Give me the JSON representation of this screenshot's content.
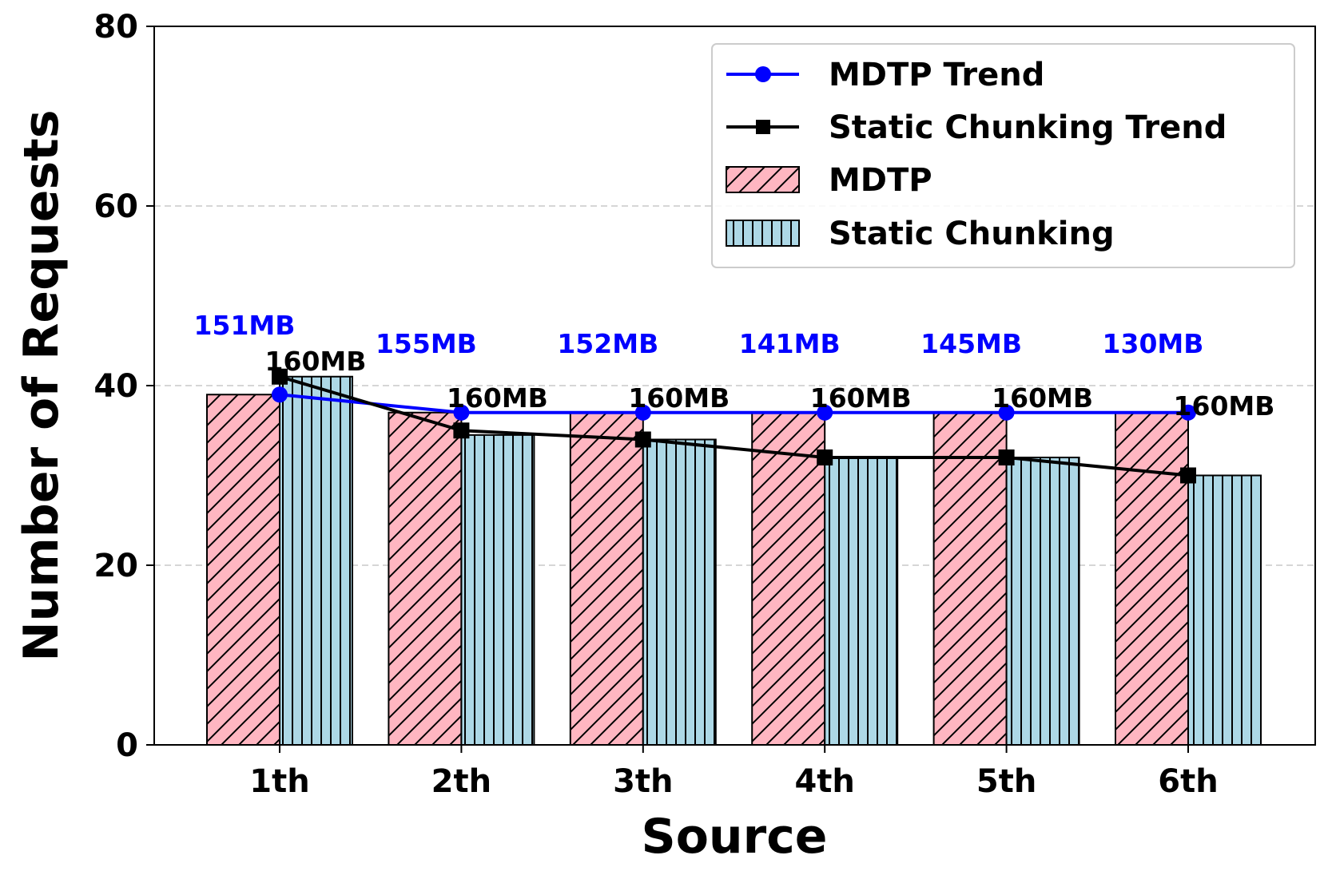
{
  "chart_data": {
    "type": "bar",
    "title": "",
    "xlabel": "Source",
    "ylabel": "Number of Requests",
    "ylim": [
      0,
      80
    ],
    "yticks": [
      0,
      20,
      40,
      60,
      80
    ],
    "grid": "y-dashed",
    "legend_position": "top-right",
    "categories": [
      "1th",
      "2th",
      "3th",
      "4th",
      "5th",
      "6th"
    ],
    "series": [
      {
        "name": "MDTP",
        "kind": "bar",
        "color": "#ffb6c1",
        "hatch": "diagonal",
        "values": [
          39,
          37,
          37,
          37,
          37,
          37
        ],
        "labels": [
          "151MB",
          "155MB",
          "152MB",
          "141MB",
          "145MB",
          "130MB"
        ],
        "label_color": "#0000ff"
      },
      {
        "name": "Static Chunking",
        "kind": "bar",
        "color": "#add8e6",
        "hatch": "vertical",
        "values": [
          41,
          34.5,
          34,
          32,
          32,
          30
        ],
        "labels": [
          "160MB",
          "160MB",
          "160MB",
          "160MB",
          "160MB",
          "160MB"
        ],
        "label_color": "#000000"
      },
      {
        "name": "MDTP Trend",
        "kind": "line",
        "color": "#0000ff",
        "marker": "circle",
        "values": [
          39,
          37,
          37,
          37,
          37,
          37
        ]
      },
      {
        "name": "Static Chunking Trend",
        "kind": "line",
        "color": "#000000",
        "marker": "square",
        "values": [
          41,
          35,
          34,
          32,
          32,
          30
        ]
      }
    ],
    "legend": [
      "MDTP Trend",
      "Static Chunking Trend",
      "MDTP",
      "Static Chunking"
    ]
  }
}
